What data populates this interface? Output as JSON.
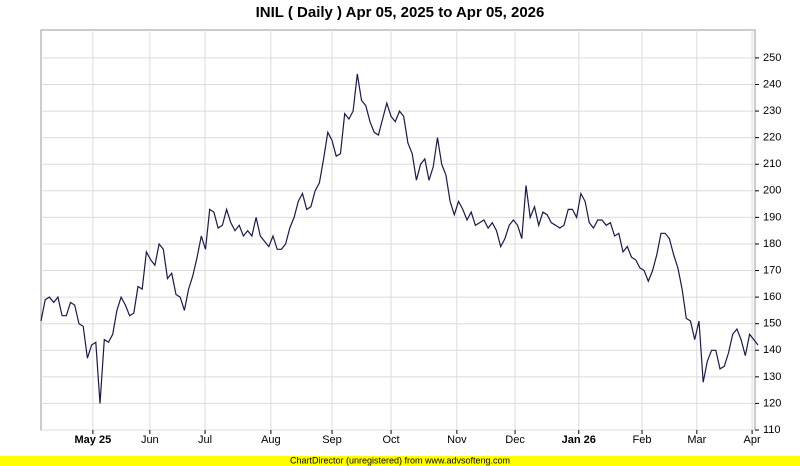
{
  "chart_data": {
    "type": "line",
    "title": "INIL ( Daily ) Apr 05, 2025 to Apr 05, 2026",
    "footer": "ChartDirector (unregistered) from www.advsofteng.com",
    "series": [
      {
        "name": "INIL",
        "color": "#1a1a4a",
        "values": [
          151,
          159,
          160,
          158,
          160,
          153,
          153,
          158,
          157,
          150,
          149,
          137,
          142,
          143,
          120,
          144,
          143,
          146,
          155,
          160,
          157,
          153,
          154,
          164,
          163,
          177,
          174,
          172,
          180,
          178,
          167,
          169,
          161,
          160,
          155,
          163,
          168,
          175,
          183,
          178,
          193,
          192,
          186,
          187,
          193,
          188,
          185,
          187,
          183,
          185,
          183,
          190,
          183,
          181,
          179,
          183,
          178,
          178,
          180,
          186,
          190,
          196,
          199,
          193,
          194,
          200,
          203,
          212,
          222,
          219,
          213,
          214,
          229,
          227,
          230,
          244,
          234,
          232,
          226,
          222,
          221,
          227,
          233,
          228,
          226,
          230,
          228,
          218,
          214,
          204,
          210,
          212,
          204,
          209,
          220,
          210,
          206,
          196,
          191,
          196,
          193,
          189,
          192,
          187,
          188,
          189,
          186,
          188,
          185,
          179,
          182,
          187,
          189,
          187,
          182,
          202,
          190,
          194,
          187,
          192,
          191,
          188,
          187,
          186,
          187,
          193,
          193,
          190,
          199,
          196,
          188,
          186,
          189,
          189,
          187,
          188,
          183,
          184,
          177,
          179,
          175,
          174,
          171,
          170,
          166,
          170,
          176,
          184,
          184,
          182,
          176,
          171,
          163,
          152,
          151,
          144,
          151,
          128,
          136,
          140,
          140,
          133,
          134,
          139,
          146,
          148,
          144,
          138,
          146,
          144,
          142
        ]
      }
    ],
    "xlim": [
      0,
      170
    ],
    "xticks": [
      {
        "value": 12.3,
        "label": "May 25"
      },
      {
        "value": 25.8,
        "label": "Jun"
      },
      {
        "value": 38.9,
        "label": "Jul"
      },
      {
        "value": 54.5,
        "label": "Aug"
      },
      {
        "value": 69,
        "label": "Sep"
      },
      {
        "value": 83,
        "label": "Oct"
      },
      {
        "value": 98.6,
        "label": "Nov"
      },
      {
        "value": 112.4,
        "label": "Dec"
      },
      {
        "value": 127.5,
        "label": "Jan 26"
      },
      {
        "value": 142.5,
        "label": "Feb"
      },
      {
        "value": 155.5,
        "label": "Mar"
      },
      {
        "value": 168.6,
        "label": "Apr"
      }
    ],
    "ylim": [
      110,
      260.5
    ],
    "yticks": [
      110,
      120,
      130,
      140,
      150,
      160,
      170,
      180,
      190,
      200,
      210,
      220,
      230,
      240,
      250
    ],
    "grid": true
  }
}
